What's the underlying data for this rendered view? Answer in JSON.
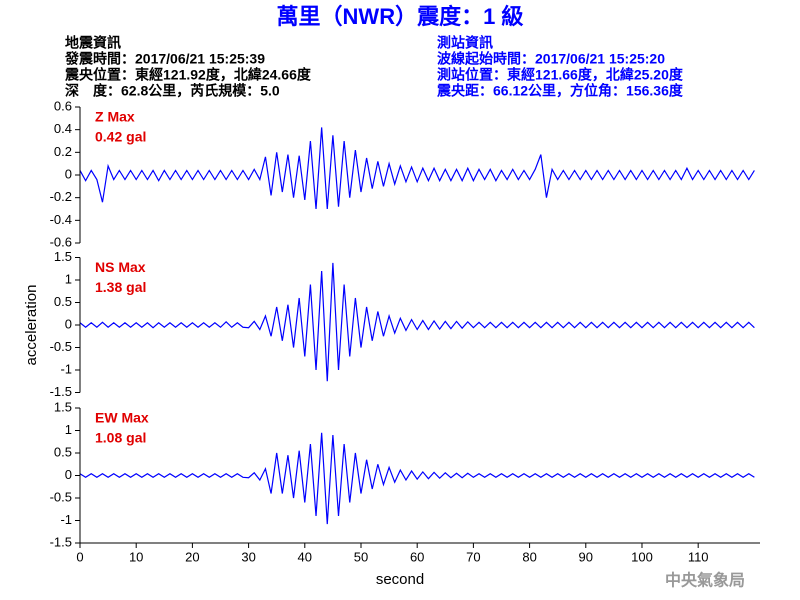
{
  "title": "萬里（NWR）震度：1 級",
  "event_info": [
    "地震資訊",
    "發震時間：2017/06/21 15:25:39",
    "震央位置：東經121.92度，北緯24.66度",
    "深　度：62.8公里，芮氏規模：5.0"
  ],
  "station_info": [
    "測站資訊",
    "波線起始時間：2017/06/21 15:25:20",
    "測站位置：東經121.66度，北緯25.20度",
    "震央距：66.12公里，方位角：156.36度"
  ],
  "footer": "中央氣象局",
  "chart_data": [
    {
      "type": "line",
      "color": "#0000ff",
      "annotations": [
        "Z Max",
        "0.42 gal"
      ],
      "xlim": [
        0,
        121
      ],
      "ylim": [
        -0.6,
        0.6
      ],
      "yticks": [
        -0.6,
        -0.4,
        -0.2,
        0,
        0.2,
        0.4,
        0.6
      ],
      "x": [
        0,
        1,
        2,
        3,
        4,
        5,
        6,
        7,
        8,
        9,
        10,
        11,
        12,
        13,
        14,
        15,
        16,
        17,
        18,
        19,
        20,
        21,
        22,
        23,
        24,
        25,
        26,
        27,
        28,
        29,
        30,
        31,
        32,
        33,
        34,
        35,
        36,
        37,
        38,
        39,
        40,
        41,
        42,
        43,
        44,
        45,
        46,
        47,
        48,
        49,
        50,
        51,
        52,
        53,
        54,
        55,
        56,
        57,
        58,
        59,
        60,
        61,
        62,
        63,
        64,
        65,
        66,
        67,
        68,
        69,
        70,
        71,
        72,
        73,
        74,
        75,
        76,
        77,
        78,
        79,
        80,
        81,
        82,
        83,
        84,
        85,
        86,
        87,
        88,
        89,
        90,
        91,
        92,
        93,
        94,
        95,
        96,
        97,
        98,
        99,
        100,
        101,
        102,
        103,
        104,
        105,
        106,
        107,
        108,
        109,
        110,
        111,
        112,
        113,
        114,
        115,
        116,
        117,
        118,
        119,
        120
      ],
      "values": [
        0.04,
        -0.05,
        0.04,
        -0.04,
        -0.24,
        0.08,
        -0.04,
        0.04,
        -0.04,
        0.04,
        -0.04,
        0.04,
        -0.04,
        0.04,
        -0.05,
        0.04,
        -0.04,
        0.04,
        -0.04,
        0.04,
        -0.04,
        0.04,
        -0.04,
        0.04,
        -0.04,
        0.04,
        -0.04,
        0.04,
        -0.04,
        0.04,
        -0.04,
        0.05,
        -0.04,
        0.16,
        -0.18,
        0.2,
        -0.15,
        0.18,
        -0.2,
        0.17,
        -0.22,
        0.3,
        -0.3,
        0.42,
        -0.3,
        0.35,
        -0.28,
        0.3,
        -0.2,
        0.22,
        -0.15,
        0.15,
        -0.12,
        0.12,
        -0.1,
        0.1,
        -0.08,
        0.08,
        -0.06,
        0.07,
        -0.06,
        0.06,
        -0.05,
        0.06,
        -0.05,
        0.05,
        -0.05,
        0.05,
        -0.05,
        0.06,
        -0.05,
        0.05,
        -0.04,
        0.05,
        -0.05,
        0.04,
        -0.04,
        0.05,
        -0.04,
        0.04,
        -0.04,
        0.05,
        0.18,
        -0.2,
        0.05,
        -0.04,
        0.04,
        -0.04,
        0.04,
        -0.04,
        0.04,
        -0.04,
        0.04,
        -0.04,
        0.04,
        -0.04,
        0.04,
        -0.04,
        0.04,
        -0.04,
        0.04,
        -0.04,
        0.04,
        -0.04,
        0.04,
        -0.04,
        0.04,
        -0.04,
        0.06,
        -0.04,
        0.04,
        -0.04,
        0.04,
        -0.04,
        0.04,
        -0.04,
        0.04,
        -0.04,
        0.04,
        -0.04,
        0.04
      ]
    },
    {
      "type": "line",
      "color": "#0000ff",
      "annotations": [
        "NS Max",
        "1.38 gal"
      ],
      "ylabel": "acceleration",
      "xlim": [
        0,
        121
      ],
      "ylim": [
        -1.5,
        1.5
      ],
      "yticks": [
        -1.5,
        -1,
        -0.5,
        0,
        0.5,
        1,
        1.5
      ],
      "x": [
        0,
        1,
        2,
        3,
        4,
        5,
        6,
        7,
        8,
        9,
        10,
        11,
        12,
        13,
        14,
        15,
        16,
        17,
        18,
        19,
        20,
        21,
        22,
        23,
        24,
        25,
        26,
        27,
        28,
        29,
        30,
        31,
        32,
        33,
        34,
        35,
        36,
        37,
        38,
        39,
        40,
        41,
        42,
        43,
        44,
        45,
        46,
        47,
        48,
        49,
        50,
        51,
        52,
        53,
        54,
        55,
        56,
        57,
        58,
        59,
        60,
        61,
        62,
        63,
        64,
        65,
        66,
        67,
        68,
        69,
        70,
        71,
        72,
        73,
        74,
        75,
        76,
        77,
        78,
        79,
        80,
        81,
        82,
        83,
        84,
        85,
        86,
        87,
        88,
        89,
        90,
        91,
        92,
        93,
        94,
        95,
        96,
        97,
        98,
        99,
        100,
        101,
        102,
        103,
        104,
        105,
        106,
        107,
        108,
        109,
        110,
        111,
        112,
        113,
        114,
        115,
        116,
        117,
        118,
        119,
        120
      ],
      "values": [
        0.05,
        -0.05,
        0.05,
        -0.05,
        0.06,
        -0.05,
        0.05,
        -0.05,
        0.05,
        -0.05,
        0.05,
        -0.05,
        0.05,
        -0.06,
        0.05,
        -0.05,
        0.05,
        -0.05,
        0.05,
        -0.05,
        0.05,
        -0.05,
        0.05,
        -0.05,
        0.05,
        -0.05,
        0.07,
        -0.05,
        0.05,
        -0.05,
        -0.06,
        0.08,
        -0.1,
        0.2,
        -0.25,
        0.4,
        -0.35,
        0.45,
        -0.5,
        0.6,
        -0.7,
        0.9,
        -1.0,
        1.2,
        -1.25,
        1.38,
        -1.0,
        0.9,
        -0.7,
        0.6,
        -0.5,
        0.4,
        -0.35,
        0.3,
        -0.25,
        0.2,
        -0.18,
        0.15,
        -0.12,
        0.12,
        -0.1,
        0.1,
        -0.1,
        0.09,
        -0.09,
        0.08,
        -0.08,
        0.08,
        -0.07,
        0.07,
        -0.06,
        0.06,
        -0.06,
        0.06,
        -0.06,
        0.06,
        -0.06,
        0.06,
        -0.06,
        0.06,
        -0.06,
        0.06,
        -0.06,
        0.06,
        -0.06,
        0.06,
        -0.06,
        0.06,
        -0.06,
        0.06,
        -0.06,
        0.06,
        -0.06,
        0.06,
        -0.06,
        0.06,
        -0.06,
        0.06,
        -0.06,
        0.06,
        -0.06,
        0.06,
        -0.06,
        0.06,
        -0.06,
        0.06,
        -0.06,
        0.06,
        -0.06,
        0.06,
        -0.06,
        0.06,
        -0.06,
        0.06,
        -0.06,
        0.06,
        -0.06,
        0.06,
        -0.06,
        0.06,
        -0.06
      ]
    },
    {
      "type": "line",
      "color": "#0000ff",
      "annotations": [
        "EW Max",
        "1.08 gal"
      ],
      "xlabel": "second",
      "xlim": [
        0,
        121
      ],
      "xticks": [
        0,
        10,
        20,
        30,
        40,
        50,
        60,
        70,
        80,
        90,
        100,
        110
      ],
      "ylim": [
        -1.5,
        1.5
      ],
      "yticks": [
        -1.5,
        -1,
        -0.5,
        0,
        0.5,
        1,
        1.5
      ],
      "x": [
        0,
        1,
        2,
        3,
        4,
        5,
        6,
        7,
        8,
        9,
        10,
        11,
        12,
        13,
        14,
        15,
        16,
        17,
        18,
        19,
        20,
        21,
        22,
        23,
        24,
        25,
        26,
        27,
        28,
        29,
        30,
        31,
        32,
        33,
        34,
        35,
        36,
        37,
        38,
        39,
        40,
        41,
        42,
        43,
        44,
        45,
        46,
        47,
        48,
        49,
        50,
        51,
        52,
        53,
        54,
        55,
        56,
        57,
        58,
        59,
        60,
        61,
        62,
        63,
        64,
        65,
        66,
        67,
        68,
        69,
        70,
        71,
        72,
        73,
        74,
        75,
        76,
        77,
        78,
        79,
        80,
        81,
        82,
        83,
        84,
        85,
        86,
        87,
        88,
        89,
        90,
        91,
        92,
        93,
        94,
        95,
        96,
        97,
        98,
        99,
        100,
        101,
        102,
        103,
        104,
        105,
        106,
        107,
        108,
        109,
        110,
        111,
        112,
        113,
        114,
        115,
        116,
        117,
        118,
        119,
        120
      ],
      "values": [
        0.04,
        -0.04,
        0.04,
        -0.04,
        0.04,
        -0.04,
        0.04,
        -0.04,
        0.04,
        -0.04,
        0.04,
        -0.04,
        0.04,
        -0.04,
        0.04,
        -0.04,
        0.04,
        -0.04,
        0.04,
        -0.04,
        0.04,
        -0.04,
        0.04,
        -0.04,
        0.04,
        -0.04,
        0.04,
        -0.04,
        0.04,
        -0.04,
        -0.05,
        0.06,
        -0.1,
        0.15,
        -0.4,
        0.5,
        -0.4,
        0.45,
        -0.5,
        0.55,
        -0.6,
        0.7,
        -0.9,
        0.95,
        -1.08,
        0.9,
        -0.9,
        0.7,
        -0.6,
        0.5,
        -0.4,
        0.35,
        -0.3,
        0.25,
        -0.2,
        0.18,
        -0.15,
        0.12,
        -0.1,
        0.1,
        -0.08,
        0.08,
        -0.07,
        0.07,
        -0.06,
        0.06,
        -0.05,
        0.05,
        -0.05,
        0.05,
        -0.04,
        0.04,
        -0.04,
        0.04,
        -0.04,
        0.04,
        -0.04,
        0.04,
        -0.04,
        0.04,
        -0.04,
        0.04,
        -0.04,
        0.04,
        -0.04,
        0.04,
        -0.04,
        0.04,
        -0.04,
        0.04,
        -0.04,
        0.04,
        -0.04,
        0.04,
        -0.04,
        0.04,
        -0.04,
        0.04,
        -0.04,
        0.04,
        -0.04,
        0.04,
        -0.04,
        0.04,
        -0.04,
        0.04,
        -0.04,
        0.04,
        -0.04,
        0.04,
        -0.04,
        0.04,
        -0.04,
        0.04,
        -0.04,
        0.04,
        -0.04,
        0.04,
        -0.04,
        0.04,
        -0.04
      ]
    }
  ]
}
